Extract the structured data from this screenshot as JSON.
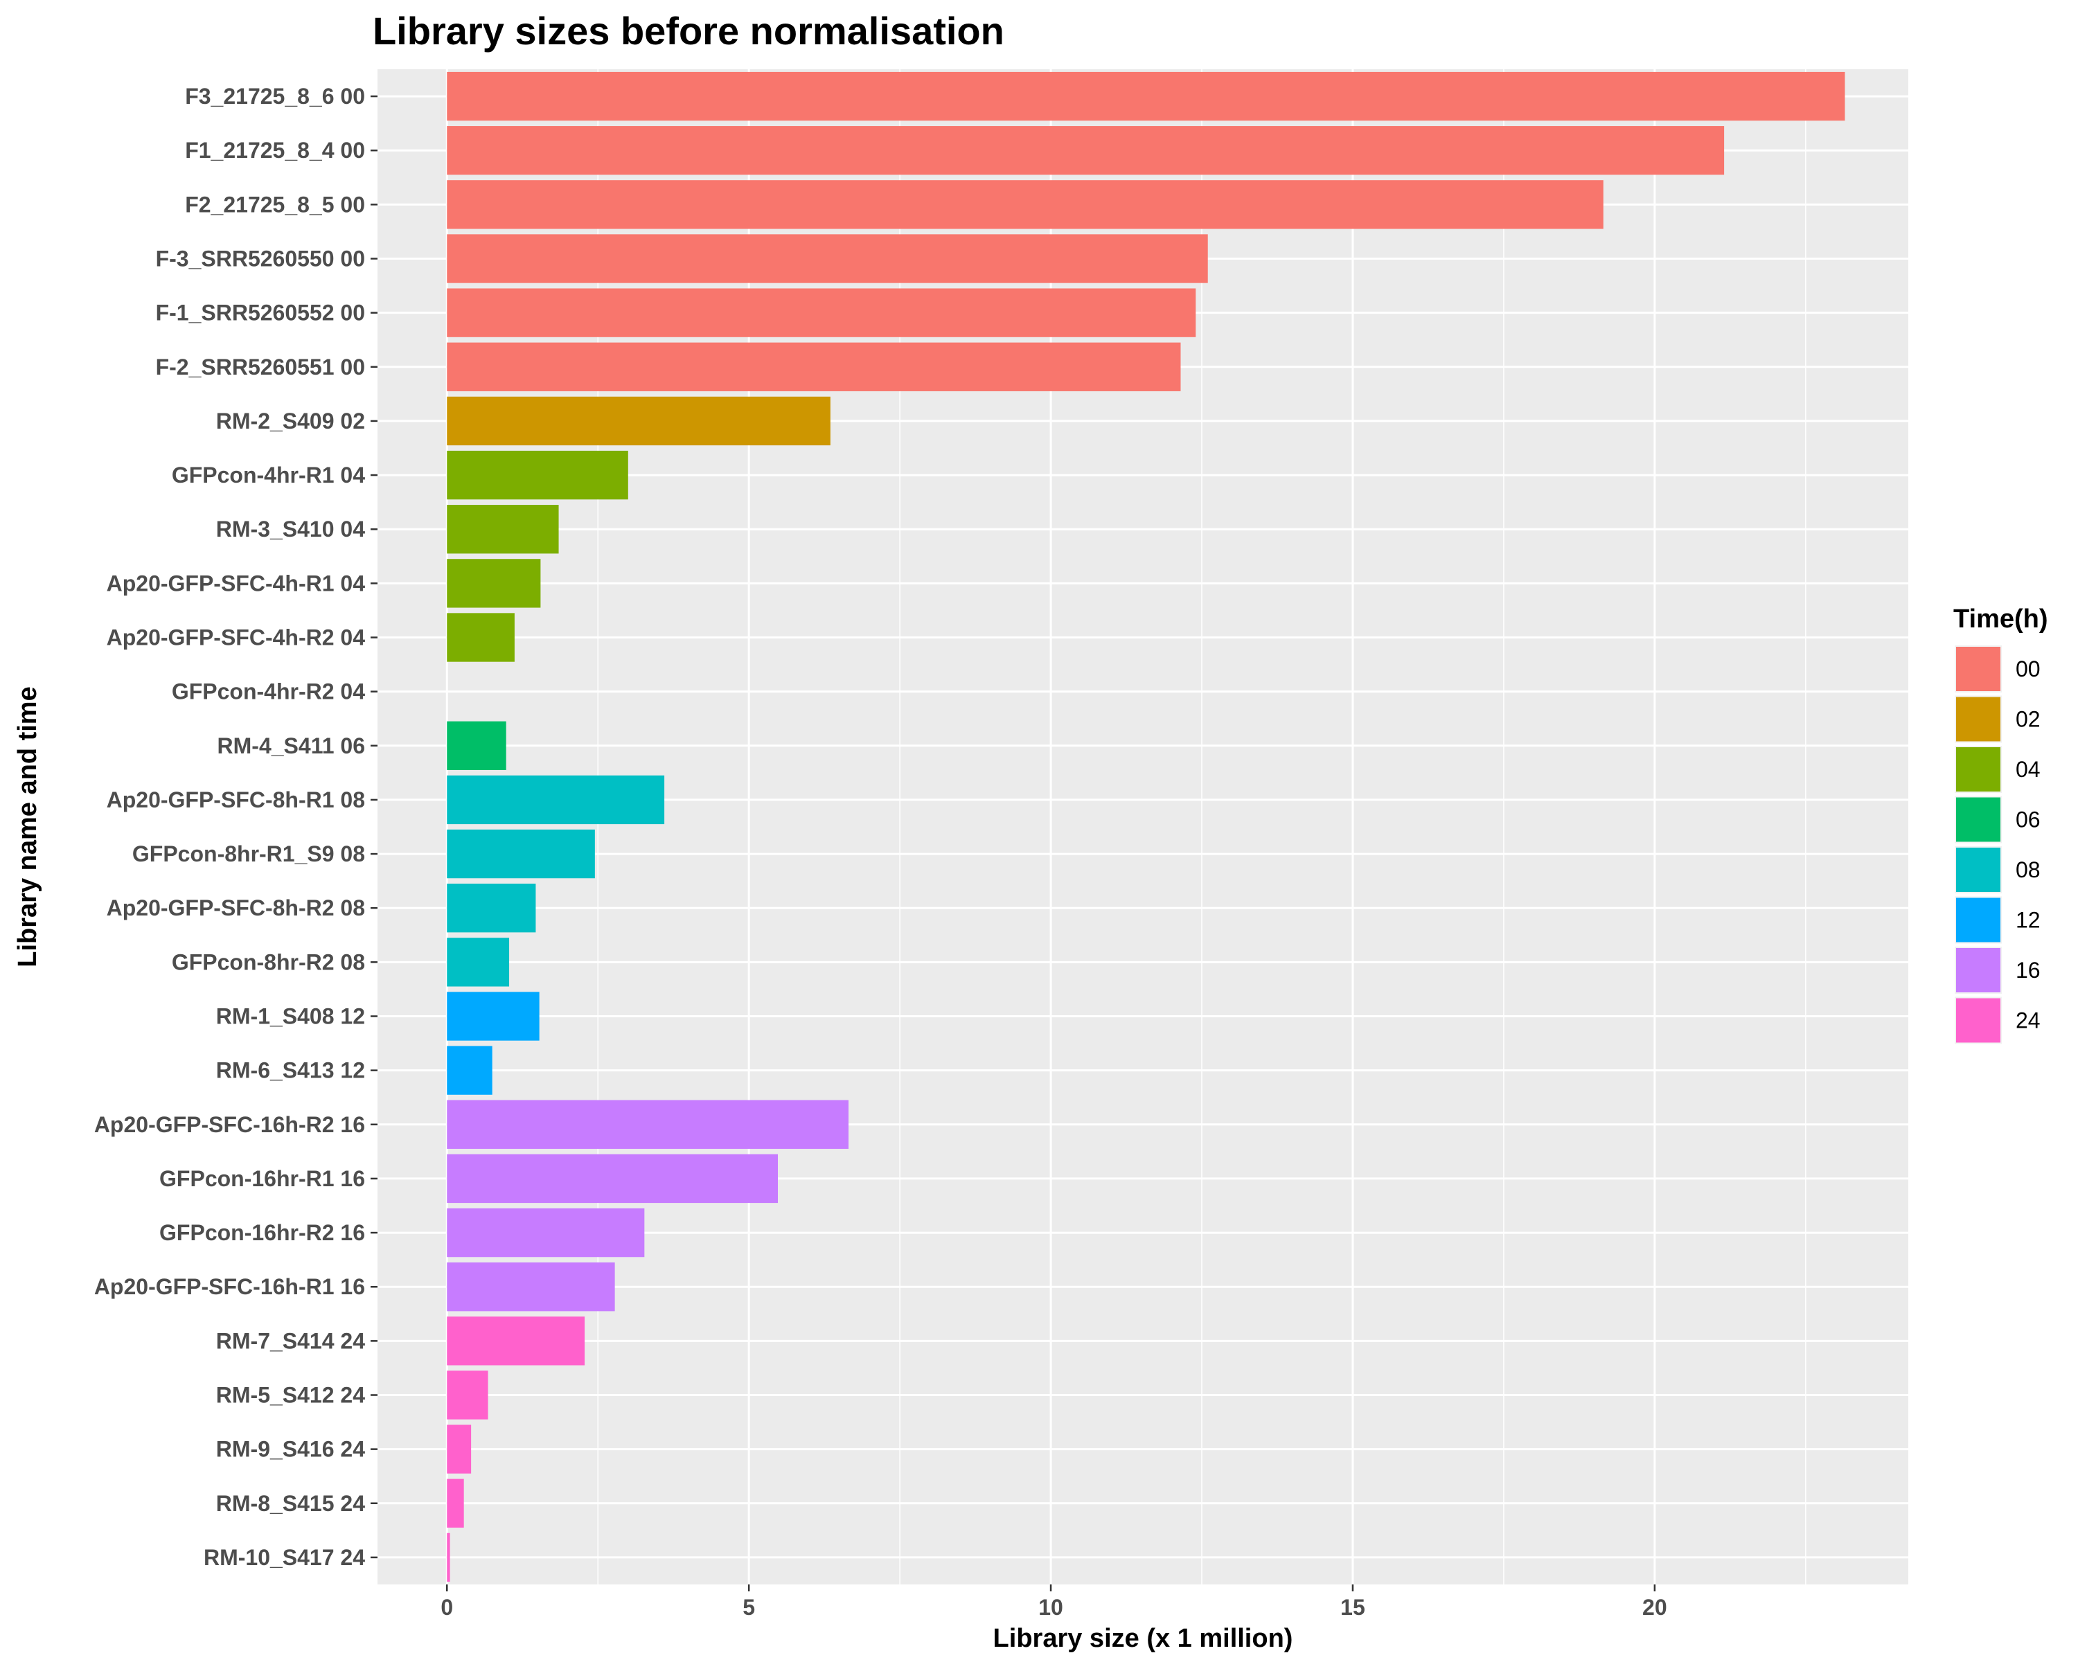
{
  "chart_data": {
    "type": "bar",
    "orientation": "horizontal",
    "title": "Library sizes before normalisation",
    "xlabel": "Library size (x 1 million)",
    "ylabel": "Library name and time",
    "xlim": [
      -1.15,
      24.2
    ],
    "xticks": [
      0,
      5,
      10,
      15,
      20
    ],
    "grid": true,
    "legend": {
      "title": "Time(h)",
      "position": "right",
      "entries": [
        {
          "label": "00",
          "color": "#F8766D"
        },
        {
          "label": "02",
          "color": "#CD9600"
        },
        {
          "label": "04",
          "color": "#7CAE00"
        },
        {
          "label": "06",
          "color": "#00BE67"
        },
        {
          "label": "08",
          "color": "#00BFC4"
        },
        {
          "label": "12",
          "color": "#00A9FF"
        },
        {
          "label": "16",
          "color": "#C77CFF"
        },
        {
          "label": "24",
          "color": "#FF61CC"
        }
      ]
    },
    "bars": [
      {
        "label": "F3_21725_8_6 00",
        "value": 23.15,
        "group": "00"
      },
      {
        "label": "F1_21725_8_4 00",
        "value": 21.15,
        "group": "00"
      },
      {
        "label": "F2_21725_8_5 00",
        "value": 19.15,
        "group": "00"
      },
      {
        "label": "F-3_SRR5260550 00",
        "value": 12.6,
        "group": "00"
      },
      {
        "label": "F-1_SRR5260552 00",
        "value": 12.4,
        "group": "00"
      },
      {
        "label": "F-2_SRR5260551 00",
        "value": 12.15,
        "group": "00"
      },
      {
        "label": "RM-2_S409 02",
        "value": 6.35,
        "group": "02"
      },
      {
        "label": "GFPcon-4hr-R1 04",
        "value": 3.0,
        "group": "04"
      },
      {
        "label": "RM-3_S410 04",
        "value": 1.85,
        "group": "04"
      },
      {
        "label": "Ap20-GFP-SFC-4h-R1 04",
        "value": 1.55,
        "group": "04"
      },
      {
        "label": "Ap20-GFP-SFC-4h-R2 04",
        "value": 1.12,
        "group": "04"
      },
      {
        "label": "GFPcon-4hr-R2 04",
        "value": 0,
        "group": "04"
      },
      {
        "label": "RM-4_S411 06",
        "value": 0.98,
        "group": "06"
      },
      {
        "label": "Ap20-GFP-SFC-8h-R1 08",
        "value": 3.6,
        "group": "08"
      },
      {
        "label": "GFPcon-8hr-R1_S9 08",
        "value": 2.45,
        "group": "08"
      },
      {
        "label": "Ap20-GFP-SFC-8h-R2 08",
        "value": 1.47,
        "group": "08"
      },
      {
        "label": "GFPcon-8hr-R2 08",
        "value": 1.03,
        "group": "08"
      },
      {
        "label": "RM-1_S408 12",
        "value": 1.53,
        "group": "12"
      },
      {
        "label": "RM-6_S413 12",
        "value": 0.75,
        "group": "12"
      },
      {
        "label": "Ap20-GFP-SFC-16h-R2 16",
        "value": 6.65,
        "group": "16"
      },
      {
        "label": "GFPcon-16hr-R1 16",
        "value": 5.48,
        "group": "16"
      },
      {
        "label": "GFPcon-16hr-R2 16",
        "value": 3.27,
        "group": "16"
      },
      {
        "label": "Ap20-GFP-SFC-16h-R1 16",
        "value": 2.78,
        "group": "16"
      },
      {
        "label": "RM-7_S414 24",
        "value": 2.28,
        "group": "24"
      },
      {
        "label": "RM-5_S412 24",
        "value": 0.68,
        "group": "24"
      },
      {
        "label": "RM-9_S416 24",
        "value": 0.4,
        "group": "24"
      },
      {
        "label": "RM-8_S415 24",
        "value": 0.28,
        "group": "24"
      },
      {
        "label": "RM-10_S417 24",
        "value": 0.05,
        "group": "24"
      }
    ]
  }
}
